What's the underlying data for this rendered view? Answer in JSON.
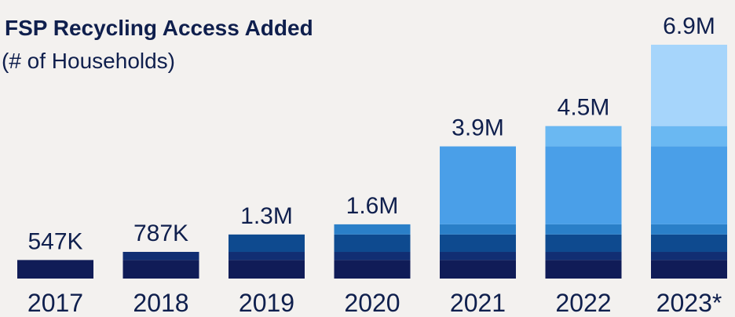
{
  "chart_data": {
    "type": "bar",
    "stacked": true,
    "title": "FSP Recycling Access Added",
    "subtitle": "(# of Households)",
    "categories": [
      "2017",
      "2018",
      "2019",
      "2020",
      "2021",
      "2022",
      "2023*"
    ],
    "totals": [
      547000,
      787000,
      1300000,
      1600000,
      3900000,
      4500000,
      6900000
    ],
    "total_labels": [
      "547K",
      "787K",
      "1.3M",
      "1.6M",
      "3.9M",
      "4.5M",
      "6.9M"
    ],
    "series": [
      {
        "color": "#101c57",
        "values": [
          547000,
          547000,
          547000,
          547000,
          547000,
          547000,
          547000
        ]
      },
      {
        "color": "#112e73",
        "values": [
          0,
          240000,
          240000,
          240000,
          240000,
          240000,
          240000
        ]
      },
      {
        "color": "#0e4a8f",
        "values": [
          0,
          0,
          513000,
          513000,
          513000,
          513000,
          513000
        ]
      },
      {
        "color": "#2a7fc8",
        "values": [
          0,
          0,
          0,
          300000,
          300000,
          300000,
          300000
        ]
      },
      {
        "color": "#4a9fe8",
        "values": [
          0,
          0,
          0,
          0,
          2300000,
          2300000,
          2300000
        ]
      },
      {
        "color": "#6ab8f2",
        "values": [
          0,
          0,
          0,
          0,
          0,
          600000,
          600000
        ]
      },
      {
        "color": "#a6d5fb",
        "values": [
          0,
          0,
          0,
          0,
          0,
          0,
          2400000
        ]
      }
    ],
    "ylim": [
      0,
      6900000
    ],
    "grid": false,
    "legend": "none"
  }
}
